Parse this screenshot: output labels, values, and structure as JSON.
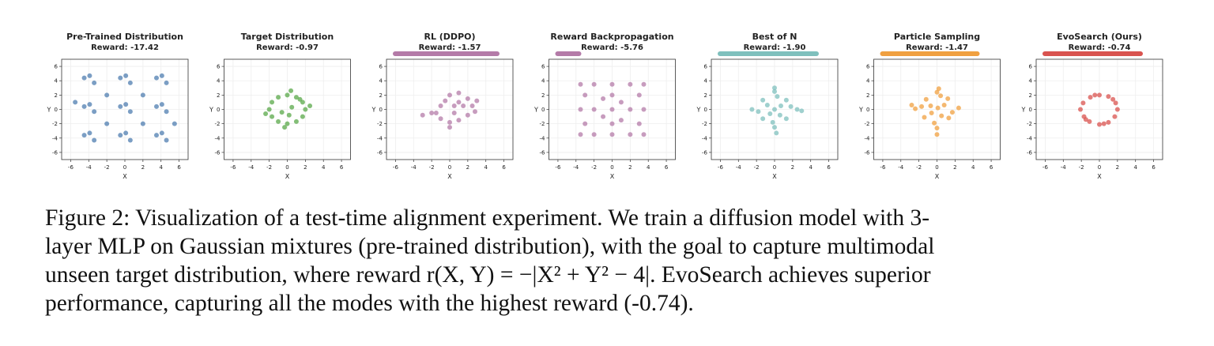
{
  "chart_data": [
    {
      "type": "scatter",
      "title": "Pre-Trained Distribution",
      "subtitle": "Reward: -17.42",
      "xlabel": "X",
      "ylabel": "Y",
      "color": "#4f7db0",
      "x": [
        -4.5,
        -3.4,
        -3.9,
        -4.5,
        -3.4,
        -3.9,
        -4.5,
        -3.4,
        -3.9,
        -0.5,
        0.6,
        0.1,
        -0.5,
        0.6,
        0.1,
        -0.5,
        0.6,
        0.1,
        3.5,
        4.6,
        4.1,
        3.5,
        4.6,
        4.1,
        3.5,
        4.6,
        4.1,
        -2,
        2,
        -2,
        2,
        -5.5,
        5.5
      ],
      "y": [
        -3.6,
        -4.3,
        -3.3,
        0.4,
        -0.3,
        0.7,
        4.4,
        3.7,
        4.7,
        -3.6,
        -4.3,
        -3.3,
        0.4,
        -0.3,
        0.7,
        4.4,
        3.7,
        4.7,
        -3.6,
        -4.3,
        -3.3,
        0.4,
        -0.3,
        0.7,
        4.4,
        3.7,
        4.7,
        2,
        -2,
        -2,
        2,
        1,
        -2
      ],
      "xlim": [
        -7,
        7
      ],
      "ylim": [
        -7,
        7
      ],
      "xticks": [
        -6,
        -4,
        -2,
        0,
        2,
        4,
        6
      ],
      "yticks": [
        -6,
        -4,
        -2,
        0,
        2,
        4,
        6
      ],
      "grid": true
    },
    {
      "type": "scatter",
      "title": "Target Distribution",
      "subtitle": "Reward: -0.97",
      "xlabel": "X",
      "ylabel": "Y",
      "color": "#5aa84a",
      "x": [
        2,
        1.7,
        1,
        0,
        -1,
        -1.7,
        -2,
        -1.7,
        -1,
        0,
        1,
        1.7,
        0.5,
        -0.6,
        0.2,
        2.5,
        -2.4,
        0.4,
        -0.3,
        1.4
      ],
      "y": [
        0,
        1,
        1.7,
        2,
        1.7,
        1,
        0,
        -1,
        -1.7,
        -2,
        -1.7,
        -1,
        0.3,
        -0.4,
        -0.8,
        0.5,
        -0.6,
        2.6,
        -2.5,
        1.4
      ],
      "xlim": [
        -7,
        7
      ],
      "ylim": [
        -7,
        7
      ],
      "xticks": [
        -6,
        -4,
        -2,
        0,
        2,
        4,
        6
      ],
      "yticks": [
        -6,
        -4,
        -2,
        0,
        2,
        4,
        6
      ],
      "grid": true
    },
    {
      "type": "scatter",
      "title": "RL (DDPO)",
      "subtitle": "Reward: -1.57",
      "xlabel": "X",
      "ylabel": "Y",
      "color": "#b47ba8",
      "x": [
        0,
        1,
        2,
        2.5,
        2,
        1,
        0,
        -1,
        -1.5,
        -1,
        0.5,
        1.5,
        0.5,
        -2,
        -3,
        2.8,
        1,
        -0.5,
        3,
        0
      ],
      "y": [
        2,
        2.3,
        1.5,
        0.5,
        -0.8,
        -1.5,
        -1.8,
        -1.3,
        -0.5,
        0.5,
        0.5,
        0.5,
        -0.5,
        -0.5,
        -0.8,
        -0.3,
        1,
        1.2,
        1.2,
        -2.5
      ],
      "xlim": [
        -7,
        7
      ],
      "ylim": [
        -7,
        7
      ],
      "xticks": [
        -6,
        -4,
        -2,
        0,
        2,
        4,
        6
      ],
      "yticks": [
        -6,
        -4,
        -2,
        0,
        2,
        4,
        6
      ],
      "grid": true
    },
    {
      "type": "scatter",
      "title": "Reward Backpropagation",
      "subtitle": "Reward: -5.76",
      "xlabel": "X",
      "ylabel": "Y",
      "color": "#b47ba8",
      "x": [
        -3.5,
        -2,
        0,
        2,
        3.5,
        -3.5,
        -2,
        0,
        2,
        3.5,
        -3.5,
        -2,
        0,
        2,
        3.5,
        -3,
        3,
        -1,
        1,
        -3,
        3,
        0,
        0,
        -1,
        1
      ],
      "y": [
        -3.5,
        -3.5,
        -3.5,
        -3.5,
        -3.5,
        0,
        0,
        0,
        0,
        0,
        3.5,
        3.5,
        3.5,
        3.5,
        3.5,
        -2,
        2,
        1.5,
        -1.5,
        2,
        -2,
        -2,
        2,
        -1,
        1
      ],
      "xlim": [
        -7,
        7
      ],
      "ylim": [
        -7,
        7
      ],
      "xticks": [
        -6,
        -4,
        -2,
        0,
        2,
        4,
        6
      ],
      "yticks": [
        -6,
        -4,
        -2,
        0,
        2,
        4,
        6
      ],
      "grid": true
    },
    {
      "type": "scatter",
      "title": "Best of N",
      "subtitle": "Reward: -1.90",
      "xlabel": "X",
      "ylabel": "Y",
      "color": "#7fc0bd",
      "x": [
        0,
        1.3,
        2.5,
        1.3,
        0,
        -1.3,
        -2.5,
        -1.3,
        0,
        0.7,
        -0.8,
        0.6,
        -0.5,
        1.8,
        -1.8,
        0.3,
        -0.2,
        0,
        0.2,
        3
      ],
      "y": [
        2.5,
        1.3,
        0,
        -1.3,
        -2.5,
        -1.3,
        0,
        1.3,
        0,
        0.5,
        0.6,
        -0.8,
        -0.6,
        0.4,
        -0.3,
        1.8,
        -1.8,
        3,
        -3.3,
        -0.2
      ],
      "xlim": [
        -7,
        7
      ],
      "ylim": [
        -7,
        7
      ],
      "xticks": [
        -6,
        -4,
        -2,
        0,
        2,
        4,
        6
      ],
      "yticks": [
        -6,
        -4,
        -2,
        0,
        2,
        4,
        6
      ],
      "grid": true
    },
    {
      "type": "scatter",
      "title": "Particle Sampling",
      "subtitle": "Reward: -1.47",
      "xlabel": "X",
      "ylabel": "Y",
      "color": "#f0a040",
      "x": [
        0,
        1.2,
        2.4,
        1.3,
        0,
        -1.4,
        -2.4,
        -1.2,
        0.1,
        0.8,
        -0.7,
        0.5,
        -0.6,
        1.7,
        -1.7,
        0.4,
        -0.3,
        0.2,
        0,
        -2.8
      ],
      "y": [
        2.4,
        1.5,
        0.2,
        -1.2,
        -2.6,
        -1.1,
        0.1,
        1.4,
        0.2,
        0.6,
        0.5,
        -0.9,
        -0.5,
        -0.4,
        0.4,
        1.9,
        -1.9,
        2.9,
        -3.5,
        0.6
      ],
      "xlim": [
        -7,
        7
      ],
      "ylim": [
        -7,
        7
      ],
      "xticks": [
        -6,
        -4,
        -2,
        0,
        2,
        4,
        6
      ],
      "yticks": [
        -6,
        -4,
        -2,
        0,
        2,
        4,
        6
      ],
      "grid": true
    },
    {
      "type": "scatter",
      "title": "EvoSearch (Ours)",
      "subtitle": "Reward: -0.74",
      "xlabel": "X",
      "ylabel": "Y",
      "color": "#d9534f",
      "x": [
        2,
        1.8,
        1,
        0,
        -1,
        -1.8,
        -2.1,
        -1.7,
        -1.1,
        0,
        1,
        1.7,
        1.5,
        -1.5,
        0.5,
        -0.5
      ],
      "y": [
        0,
        0.9,
        1.8,
        2,
        1.7,
        0.9,
        0,
        -1,
        -1.7,
        -2.1,
        -1.8,
        -1,
        1.4,
        -1.4,
        -2,
        2
      ],
      "xlim": [
        -7,
        7
      ],
      "ylim": [
        -7,
        7
      ],
      "xticks": [
        -6,
        -4,
        -2,
        0,
        2,
        4,
        6
      ],
      "yticks": [
        -6,
        -4,
        -2,
        0,
        2,
        4,
        6
      ],
      "grid": true
    }
  ],
  "caption": [
    "Figure 2: Visualization of a test-time alignment experiment. We train a diffusion model with 3-",
    "layer MLP on Gaussian mixtures (pre-trained distribution), with the goal to capture multimodal",
    "unseen target distribution, where reward r(X, Y) = −|X² + Y² − 4|. EvoSearch achieves superior",
    "performance, capturing all the modes with the highest reward (-0.74)."
  ]
}
